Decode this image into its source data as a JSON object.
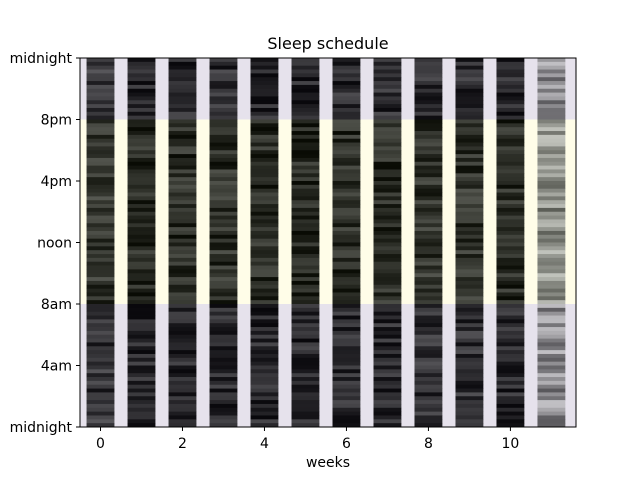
{
  "chart_data": {
    "type": "heatmap",
    "title": "Sleep schedule",
    "xlabel": "weeks",
    "ylabel": "",
    "xlim": [
      -0.5,
      11.6
    ],
    "ylim": [
      0,
      24
    ],
    "x_ticks": [
      0,
      2,
      4,
      6,
      8,
      10
    ],
    "y_ticks": [
      {
        "value": 24,
        "label": "midnight"
      },
      {
        "value": 20,
        "label": "8pm"
      },
      {
        "value": 16,
        "label": "4pm"
      },
      {
        "value": 12,
        "label": "noon"
      },
      {
        "value": 8,
        "label": "8am"
      },
      {
        "value": 4,
        "label": "4am"
      },
      {
        "value": 0,
        "label": "midnight"
      }
    ],
    "day_band": {
      "start_hour": 8,
      "end_hour": 20,
      "color": "#fffde8"
    },
    "night_color": "#e6e2ec",
    "week_columns": [
      {
        "week": 0,
        "shade": 0.2
      },
      {
        "week": 1,
        "shade": 0.14
      },
      {
        "week": 2,
        "shade": 0.16
      },
      {
        "week": 3,
        "shade": 0.17
      },
      {
        "week": 4,
        "shade": 0.15
      },
      {
        "week": 5,
        "shade": 0.14
      },
      {
        "week": 6,
        "shade": 0.16
      },
      {
        "week": 7,
        "shade": 0.17
      },
      {
        "week": 8,
        "shade": 0.19
      },
      {
        "week": 9,
        "shade": 0.18
      },
      {
        "week": 10,
        "shade": 0.16
      },
      {
        "week": 11,
        "shade": 0.55
      }
    ],
    "column_width_weeks": 0.68,
    "grid": false
  }
}
